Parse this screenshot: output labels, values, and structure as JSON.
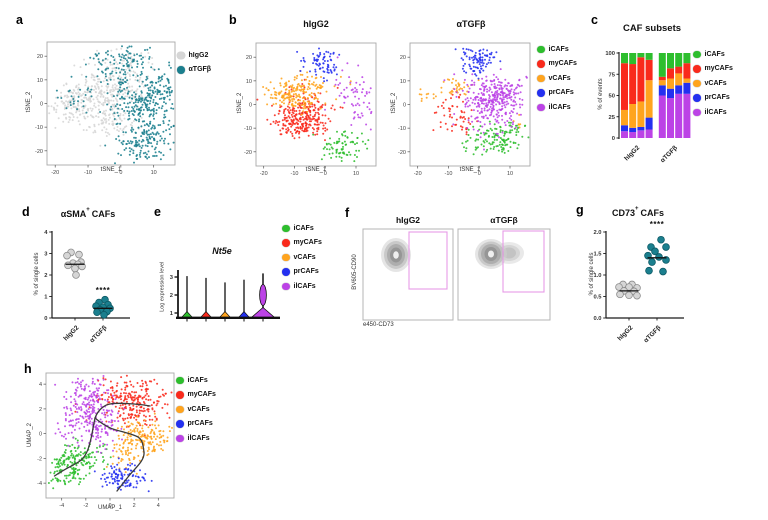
{
  "panels": {
    "a": {
      "letter": "a"
    },
    "b": {
      "letter": "b"
    },
    "c": {
      "letter": "c"
    },
    "d": {
      "letter": "d"
    },
    "e": {
      "letter": "e"
    },
    "f": {
      "letter": "f"
    },
    "g": {
      "letter": "g"
    },
    "h": {
      "letter": "h"
    }
  },
  "legends": {
    "treatment": [
      {
        "label": "hIgG2",
        "color": "#d6d6d6"
      },
      {
        "label": "αTGFβ",
        "color": "#1b7f8e"
      }
    ],
    "subsets": [
      {
        "label": "iCAFs",
        "color": "#2dbe2d"
      },
      {
        "label": "myCAFs",
        "color": "#f92a1c"
      },
      {
        "label": "vCAFs",
        "color": "#ffa41e"
      },
      {
        "label": "prCAFs",
        "color": "#2430f0"
      },
      {
        "label": "ilCAFs",
        "color": "#bc43e6"
      }
    ]
  },
  "chart_data": [
    {
      "panel": "a",
      "type": "scatter",
      "xlabel": "tSNE_1",
      "ylabel": "tSNE_2",
      "xlim": [
        -22.5,
        16.5
      ],
      "ylim": [
        -26,
        26
      ],
      "xticks": [
        -20,
        -10,
        0,
        10
      ],
      "yticks": [
        -20,
        -10,
        0,
        10,
        20
      ],
      "series": [
        {
          "name": "hIgG2",
          "color": "#d6d6d6",
          "clusters": [
            [
              -9,
              1,
              5.5,
              5,
              230
            ],
            [
              -3,
              9,
              5,
              4,
              90
            ],
            [
              -15,
              1,
              3,
              4,
              40
            ],
            [
              -1,
              17,
              5,
              3.5,
              45
            ],
            [
              -3,
              -7,
              5,
              4,
              70
            ],
            [
              3,
              5,
              4,
              4,
              40
            ]
          ]
        },
        {
          "name": "αTGFβ",
          "color": "#1b7f8e",
          "clusters": [
            [
              6,
              -1,
              5,
              6,
              200
            ],
            [
              2,
              19,
              5,
              2.8,
              80
            ],
            [
              9,
              -14,
              4,
              4.5,
              110
            ],
            [
              13,
              6,
              3.5,
              4,
              70
            ],
            [
              -13,
              3,
              3.5,
              3,
              25
            ],
            [
              0,
              10,
              5,
              4,
              50
            ],
            [
              5,
              -20,
              4,
              2.5,
              40
            ]
          ]
        }
      ]
    },
    {
      "panel": "b_hIgG2",
      "type": "scatter",
      "title": "hIgG2",
      "xlabel": "tSNE_1",
      "ylabel": "tSNE_2",
      "xlim": [
        -22.5,
        16.5
      ],
      "ylim": [
        -26,
        26
      ],
      "xticks": [
        -20,
        -10,
        0,
        10
      ],
      "yticks": [
        -20,
        -10,
        0,
        10,
        20
      ],
      "series": [
        {
          "name": "iCAFs",
          "clusters": [
            [
              7,
              -17,
              3.5,
              3,
              65
            ],
            [
              4,
              -21,
              2,
              1.5,
              15
            ]
          ]
        },
        {
          "name": "myCAFs",
          "clusters": [
            [
              -7,
              -4,
              4.5,
              4.5,
              240
            ],
            [
              -10,
              -9,
              3,
              3,
              60
            ]
          ]
        },
        {
          "name": "vCAFs",
          "clusters": [
            [
              -13,
              5,
              4,
              3,
              90
            ],
            [
              -5,
              7,
              4,
              3,
              80
            ],
            [
              -9,
              1,
              3,
              2.5,
              40
            ]
          ]
        },
        {
          "name": "prCAFs",
          "clusters": [
            [
              -2,
              19,
              3,
              2.5,
              55
            ],
            [
              1,
              14,
              2.5,
              2,
              20
            ]
          ]
        },
        {
          "name": "ilCAFs",
          "clusters": [
            [
              10,
              5,
              3.5,
              5,
              45
            ],
            [
              12,
              -3,
              2.5,
              3,
              20
            ]
          ]
        }
      ]
    },
    {
      "panel": "b_aTGFb",
      "type": "scatter",
      "title": "αTGFβ",
      "xlabel": "tSNE_1",
      "ylabel": "tSNE_2",
      "xlim": [
        -22.5,
        16.5
      ],
      "ylim": [
        -26,
        26
      ],
      "xticks": [
        -20,
        -10,
        0,
        10
      ],
      "yticks": [
        -20,
        -10,
        0,
        10,
        20
      ],
      "series": [
        {
          "name": "iCAFs",
          "clusters": [
            [
              5,
              -15,
              4.5,
              3.5,
              115
            ],
            [
              10,
              -10,
              2.5,
              2,
              25
            ]
          ]
        },
        {
          "name": "myCAFs",
          "clusters": [
            [
              -9,
              -4,
              3,
              5,
              45
            ],
            [
              -4,
              -10,
              2,
              2,
              12
            ]
          ]
        },
        {
          "name": "vCAFs",
          "clusters": [
            [
              -7,
              7,
              3,
              2.5,
              35
            ],
            [
              -16,
              4,
              2,
              1.5,
              12
            ],
            [
              13,
              -8,
              1.5,
              1.5,
              6
            ]
          ]
        },
        {
          "name": "prCAFs",
          "clusters": [
            [
              0,
              19,
              3,
              2.5,
              80
            ],
            [
              -3,
              14,
              2,
              2,
              15
            ]
          ]
        },
        {
          "name": "ilCAFs",
          "clusters": [
            [
              4,
              1,
              5,
              5.5,
              300
            ],
            [
              8,
              6,
              3,
              3,
              60
            ]
          ]
        }
      ]
    },
    {
      "panel": "c",
      "type": "bar",
      "title": "CAF subsets",
      "ylabel": "% of events",
      "ylim": [
        0,
        100
      ],
      "yticks": [
        0,
        25,
        50,
        75,
        100
      ],
      "stack_order": [
        "ilCAFs",
        "prCAFs",
        "vCAFs",
        "myCAFs",
        "iCAFs"
      ],
      "groups": [
        {
          "label": "hIgG2",
          "bars": [
            [
              8,
              7,
              18,
              55,
              12
            ],
            [
              7,
              5,
              28,
              47,
              13
            ],
            [
              9,
              4,
              30,
              52,
              5
            ],
            [
              10,
              14,
              44,
              24,
              8
            ]
          ]
        },
        {
          "label": "αTGFβ",
          "bars": [
            [
              50,
              12,
              6,
              4,
              28
            ],
            [
              47,
              11,
              12,
              12,
              18
            ],
            [
              52,
              10,
              14,
              8,
              16
            ],
            [
              52,
              13,
              5,
              18,
              12
            ]
          ]
        }
      ]
    },
    {
      "panel": "d",
      "type": "scatter",
      "title_main": "αSMA",
      "title_sup": "+",
      "title_rest": "CAFs",
      "ylabel": "% of single cells",
      "ylim": [
        0,
        4
      ],
      "sig": "****",
      "yticks": [
        {
          "v": 0,
          "t": "0"
        },
        {
          "v": 1,
          "t": "1"
        },
        {
          "v": 2,
          "t": "2"
        },
        {
          "v": 3,
          "t": "3"
        },
        {
          "v": 4,
          "t": "4"
        }
      ],
      "groups": [
        {
          "label": "hIgG2",
          "color": "#d6d6d6",
          "stroke": "#8c8c8c",
          "mean": 2.5,
          "points": [
            [
              -4,
              3.05
            ],
            [
              4,
              2.95
            ],
            [
              -8,
              2.9
            ],
            [
              6,
              2.6
            ],
            [
              -2,
              2.55
            ],
            [
              3,
              2.5
            ],
            [
              -7,
              2.45
            ],
            [
              7,
              2.4
            ],
            [
              0,
              2.3
            ],
            [
              1,
              2.0
            ]
          ]
        },
        {
          "label": "αTGFβ",
          "color": "#1b7f8e",
          "stroke": "#0e5a66",
          "mean": 0.45,
          "points": [
            [
              2,
              0.85
            ],
            [
              -4,
              0.72
            ],
            [
              5,
              0.62
            ],
            [
              -7,
              0.55
            ],
            [
              0,
              0.5
            ],
            [
              7,
              0.45
            ],
            [
              -3,
              0.38
            ],
            [
              4,
              0.3
            ],
            [
              -6,
              0.27
            ],
            [
              1,
              0.15
            ]
          ]
        }
      ]
    },
    {
      "panel": "e",
      "type": "violin",
      "title": "Nt5e",
      "ylabel": "Log expression level",
      "yticks": [
        1,
        2,
        3
      ],
      "violins": [
        {
          "name": "iCAFs",
          "top": 3.05,
          "shape": "spike"
        },
        {
          "name": "myCAFs",
          "top": 2.95,
          "shape": "spike"
        },
        {
          "name": "vCAFs",
          "top": 2.7,
          "shape": "spike"
        },
        {
          "name": "prCAFs",
          "top": 2.85,
          "shape": "spike"
        },
        {
          "name": "ilCAFs",
          "top": 3.2,
          "shape": "bulge",
          "bulge_center": 2.0,
          "bulge_halfwidth": 3.4,
          "base_halfwidth": 11
        }
      ]
    },
    {
      "panel": "f",
      "type": "flow-contour",
      "xlabel": "e450-CD73",
      "ylabel": "BV605-CD90",
      "gate_color": "#e79ae7",
      "plots": [
        {
          "title": "hIgG2"
        },
        {
          "title": "αTGFβ"
        }
      ]
    },
    {
      "panel": "g",
      "type": "scatter",
      "title_main": "CD73",
      "title_sup": "+",
      "title_rest": "CAFs",
      "ylabel": "% of single cells",
      "ylim": [
        0,
        2
      ],
      "sig": "****",
      "yticks": [
        {
          "v": 0,
          "t": "0.0"
        },
        {
          "v": 0.5,
          "t": "0.5"
        },
        {
          "v": 1,
          "t": "1.0"
        },
        {
          "v": 1.5,
          "t": "1.5"
        },
        {
          "v": 2,
          "t": "2.0"
        }
      ],
      "groups": [
        {
          "label": "hIgG2",
          "color": "#d6d6d6",
          "stroke": "#8c8c8c",
          "mean": 0.63,
          "points": [
            [
              -6,
              0.78
            ],
            [
              3,
              0.78
            ],
            [
              -10,
              0.72
            ],
            [
              0,
              0.72
            ],
            [
              8,
              0.7
            ],
            [
              -5,
              0.63
            ],
            [
              5,
              0.62
            ],
            [
              -9,
              0.55
            ],
            [
              0,
              0.53
            ],
            [
              8,
              0.52
            ]
          ]
        },
        {
          "label": "αTGFβ",
          "color": "#1b7f8e",
          "stroke": "#0e5a66",
          "mean": 1.4,
          "points": [
            [
              4,
              1.82
            ],
            [
              -6,
              1.65
            ],
            [
              9,
              1.65
            ],
            [
              -2,
              1.55
            ],
            [
              -9,
              1.45
            ],
            [
              2,
              1.42
            ],
            [
              9,
              1.35
            ],
            [
              -5,
              1.3
            ],
            [
              -8,
              1.1
            ],
            [
              6,
              1.08
            ]
          ]
        }
      ]
    },
    {
      "panel": "h",
      "type": "scatter",
      "xlabel": "UMAP_1",
      "ylabel": "UMAP_2",
      "xlim": [
        -5.3,
        5.3
      ],
      "ylim": [
        -5.2,
        4.9
      ],
      "xticks": [
        -4,
        -2,
        0,
        2,
        4
      ],
      "yticks": [
        -4,
        -2,
        0,
        2,
        4
      ],
      "series": [
        {
          "name": "iCAFs",
          "clusters": [
            [
              -3.2,
              -2.4,
              0.9,
              0.8,
              140
            ],
            [
              -1.9,
              -1.6,
              0.8,
              0.6,
              40
            ],
            [
              -4.2,
              -3.3,
              0.5,
              0.5,
              20
            ]
          ]
        },
        {
          "name": "myCAFs",
          "clusters": [
            [
              1.6,
              2.7,
              1.4,
              0.9,
              210
            ],
            [
              2.8,
              1.5,
              0.8,
              0.7,
              40
            ]
          ]
        },
        {
          "name": "vCAFs",
          "clusters": [
            [
              2.7,
              -0.4,
              1.1,
              0.8,
              160
            ],
            [
              1.3,
              -1.7,
              0.8,
              0.7,
              40
            ]
          ]
        },
        {
          "name": "prCAFs",
          "clusters": [
            [
              1.0,
              -3.6,
              0.9,
              0.55,
              105
            ]
          ]
        },
        {
          "name": "ilCAFs",
          "clusters": [
            [
              -1.7,
              2.3,
              1.0,
              1.2,
              200
            ],
            [
              -0.7,
              0.4,
              0.8,
              0.9,
              70
            ],
            [
              -3.3,
              0.3,
              0.7,
              0.7,
              30
            ]
          ]
        }
      ],
      "trajectories": [
        "M8.5,103 C20,95 28,92 34,88 C42,82 44,70 46,61 C47,55 48,50 49,45 C52,37 58,32 64,31 C72,29.5 80,30.5 88,31 C94,31.5 99,32 104,33",
        "M49,45 C55,50 62,55 70,57 C78,59 86,61 92,64 C97,67 97,73 98,79 C99,88 88,96 82,104 C78,109 75,113 71,118"
      ]
    }
  ]
}
